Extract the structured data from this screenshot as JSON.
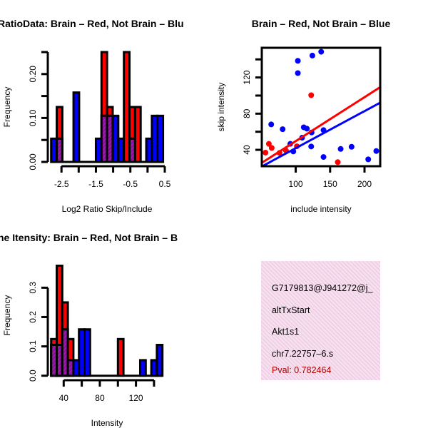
{
  "colors": {
    "red": "#ff0000",
    "blue": "#0000ff",
    "overlap": "#9a1aa8",
    "info_bg": "#f3d6ea",
    "pval": "#b00000"
  },
  "chart_data": [
    {
      "type": "bar",
      "title": "RatioData: Brain – Red, Not Brain – Blu",
      "xlabel": "Log2 Ratio Skip/Include",
      "ylabel": "Frequency",
      "bin_start": -2.8,
      "bin_width": 0.1625,
      "xlim": [
        -2.8,
        0.5
      ],
      "ylim": [
        0,
        0.25
      ],
      "xticks": [
        -2.5,
        -2,
        -1.5,
        -1,
        -0.5,
        0,
        0.5
      ],
      "xtick_labels": [
        "-2.5",
        "",
        "-1.5",
        "",
        "-0.5",
        "",
        "0.5"
      ],
      "yticks": [
        0,
        0.05,
        0.1,
        0.15,
        0.2,
        0.25
      ],
      "ytick_labels": [
        "0.00",
        "",
        "0.10",
        "",
        "0.20",
        ""
      ],
      "series": [
        {
          "name": "Brain",
          "color": "red",
          "values": [
            0,
            0.125,
            0,
            0,
            0,
            0,
            0,
            0,
            0,
            0.25,
            0.125,
            0,
            0,
            0.25,
            0.125,
            0.125,
            0,
            0,
            0,
            0
          ]
        },
        {
          "name": "Not Brain",
          "color": "blue",
          "values": [
            0.053,
            0.053,
            0,
            0,
            0.158,
            0,
            0,
            0,
            0.053,
            0.105,
            0.105,
            0.105,
            0.053,
            0,
            0.053,
            0,
            0,
            0.053,
            0.105,
            0.105
          ]
        }
      ]
    },
    {
      "type": "scatter",
      "title": "Brain – Red, Not Brain – Blue",
      "xlabel": "include intensity",
      "ylabel": "skip intensity",
      "xlim": [
        50.7,
        222.8
      ],
      "ylim": [
        21.9,
        152.8
      ],
      "xticks": [
        100,
        150,
        200
      ],
      "xtick_labels": [
        "100",
        "150",
        "200"
      ],
      "yticks": [
        40,
        60,
        80,
        100,
        120,
        140
      ],
      "ytick_labels": [
        "40",
        "",
        "80",
        "",
        "120",
        ""
      ],
      "series": [
        {
          "name": "Brain",
          "color": "red",
          "points": [
            [
              122.5,
              100.4
            ],
            [
              61,
              46.6
            ],
            [
              65.1,
              42.1
            ],
            [
              56.1,
              36.9
            ],
            [
              76.5,
              36.6
            ],
            [
              85.8,
              39.2
            ],
            [
              101.7,
              43.9
            ],
            [
              161.1,
              26.4
            ]
          ],
          "fit": {
            "slope": 0.486,
            "intercept": 1.0
          }
        },
        {
          "name": "Not Brain",
          "color": "blue",
          "points": [
            [
              103.1,
              138.4
            ],
            [
              103.1,
              124.8
            ],
            [
              124.2,
              144.2
            ],
            [
              137,
              148.4
            ],
            [
              64.4,
              68.1
            ],
            [
              81,
              62.8
            ],
            [
              111.7,
              64.9
            ],
            [
              116.2,
              63.4
            ],
            [
              123.1,
              59.2
            ],
            [
              140.4,
              61.8
            ],
            [
              109.3,
              53.4
            ],
            [
              92.1,
              46.6
            ],
            [
              96.5,
              38.2
            ],
            [
              122.5,
              43.7
            ],
            [
              140.4,
              32.1
            ],
            [
              165.3,
              41
            ],
            [
              181.2,
              43.4
            ],
            [
              205.4,
              29.5
            ],
            [
              217.1,
              38.7
            ]
          ],
          "fit": {
            "slope": 0.41,
            "intercept": 0.8
          }
        }
      ]
    },
    {
      "type": "bar",
      "title": "ne Itensity: Brain – Red, Not Brain – B",
      "xlabel": "Intensity",
      "ylabel": "Frequency",
      "bin_start": 26.1,
      "bin_width": 6.16,
      "xlim": [
        26.1,
        149.3
      ],
      "ylim": [
        0,
        0.375
      ],
      "xticks": [
        40,
        60,
        80,
        100,
        120,
        140
      ],
      "xtick_labels": [
        "40",
        "",
        "80",
        "",
        "120",
        ""
      ],
      "yticks": [
        0,
        0.1,
        0.2,
        0.3
      ],
      "ytick_labels": [
        "0.0",
        "0.1",
        "0.2",
        "0.3"
      ],
      "series": [
        {
          "name": "Brain",
          "color": "red",
          "values": [
            0.125,
            0.375,
            0.25,
            0.125,
            0,
            0,
            0,
            0,
            0,
            0,
            0,
            0,
            0.125,
            0,
            0,
            0,
            0,
            0,
            0,
            0
          ]
        },
        {
          "name": "Not Brain",
          "color": "blue",
          "values": [
            0.105,
            0.105,
            0.158,
            0.053,
            0.053,
            0.158,
            0.158,
            0,
            0,
            0,
            0,
            0,
            0,
            0,
            0,
            0,
            0.053,
            0,
            0.053,
            0.105
          ]
        }
      ]
    }
  ],
  "info": {
    "id": "G7179813@J941272@j_",
    "event_type": "altTxStart",
    "gene": "Akt1s1",
    "locus": "chr7.22757–6.s",
    "pval": "Pval: 0.782464"
  }
}
